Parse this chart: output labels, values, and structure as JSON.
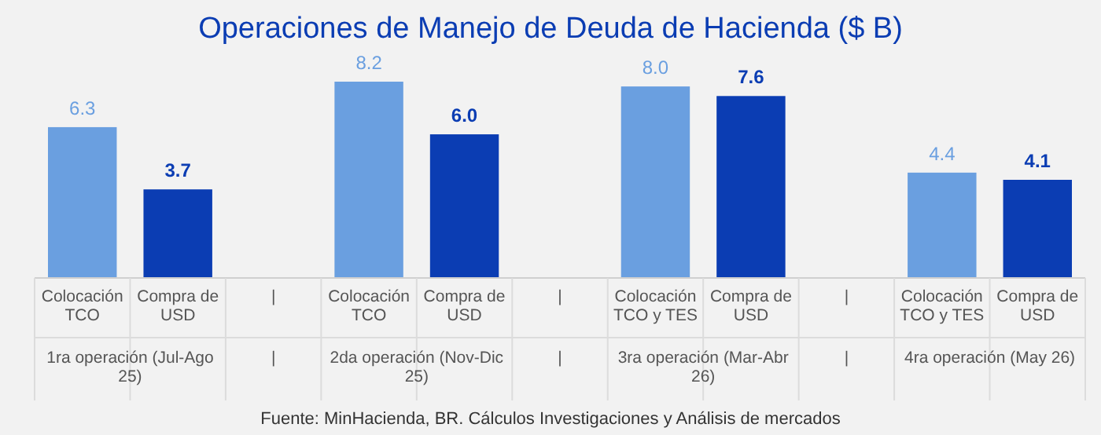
{
  "chart_data": {
    "type": "bar",
    "title": "Operaciones de Manejo de Deuda de Hacienda ($ B)",
    "categories": [
      "Colocación TCO",
      "Compra de USD",
      "|",
      "Colocación TCO",
      "Compra de USD",
      "|",
      "Colocación TCO y TES",
      "Compra de USD",
      "|",
      "Colocación TCO y TES",
      "Compra de USD"
    ],
    "values": [
      6.3,
      3.7,
      null,
      8.2,
      6.0,
      null,
      8.0,
      7.6,
      null,
      4.4,
      4.1
    ],
    "colors": [
      "#6a9fe0",
      "#0b3db3",
      null,
      "#6a9fe0",
      "#0b3db3",
      null,
      "#6a9fe0",
      "#0b3db3",
      null,
      "#6a9fe0",
      "#0b3db3"
    ],
    "value_labels": [
      "6.3",
      "3.7",
      null,
      "8.2",
      "6.0",
      null,
      "8.0",
      "7.6",
      null,
      "4.4",
      "4.1"
    ],
    "annotations": [
      "1ra operación (Jul-Ago 25)",
      "2da operación (Nov-Dic 25)",
      "3ra operación (Mar-Abr 26)",
      "4ra operación (May 26)",
      "Fuente: MinHacienda, BR. Cálculos Investigaciones y Análisis de mercados"
    ]
  }
}
